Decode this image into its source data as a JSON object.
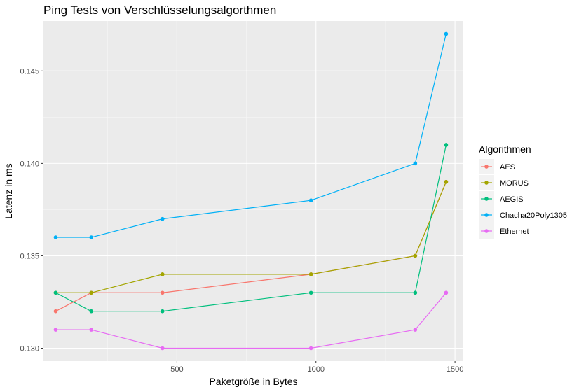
{
  "chart_data": {
    "type": "line",
    "title": "Ping Tests von Verschlüsselungsalgorthmen",
    "xlabel": "Paketgröße in Bytes",
    "ylabel": "Latenz in ms",
    "xlim": [
      20,
      1530
    ],
    "ylim": [
      0.1293,
      0.1477
    ],
    "xticks": [
      {
        "value": 500,
        "label": "500"
      },
      {
        "value": 1000,
        "label": "1000"
      },
      {
        "value": 1500,
        "label": "1500"
      }
    ],
    "yticks": [
      {
        "value": 0.13,
        "label": "0.130"
      },
      {
        "value": 0.135,
        "label": "0.135"
      },
      {
        "value": 0.14,
        "label": "0.140"
      },
      {
        "value": 0.145,
        "label": "0.145"
      }
    ],
    "grid": true,
    "legend": {
      "title": "Algorithmen",
      "position": "right"
    },
    "x": [
      64,
      192,
      448,
      982,
      1357,
      1468
    ],
    "series": [
      {
        "name": "AES",
        "color": "#F8766D",
        "values": [
          0.132,
          0.133,
          0.133,
          0.134,
          0.135,
          0.139
        ]
      },
      {
        "name": "MORUS",
        "color": "#A3A500",
        "values": [
          0.133,
          0.133,
          0.134,
          0.134,
          0.135,
          0.139
        ]
      },
      {
        "name": "AEGIS",
        "color": "#00BF7D",
        "values": [
          0.133,
          0.132,
          0.132,
          0.133,
          0.133,
          0.141
        ]
      },
      {
        "name": "Chacha20Poly1305",
        "color": "#00B0F6",
        "values": [
          0.136,
          0.136,
          0.137,
          0.138,
          0.14,
          0.147
        ]
      },
      {
        "name": "Ethernet",
        "color": "#E76BF3",
        "values": [
          0.131,
          0.131,
          0.13,
          0.13,
          0.131,
          0.133
        ]
      }
    ]
  }
}
